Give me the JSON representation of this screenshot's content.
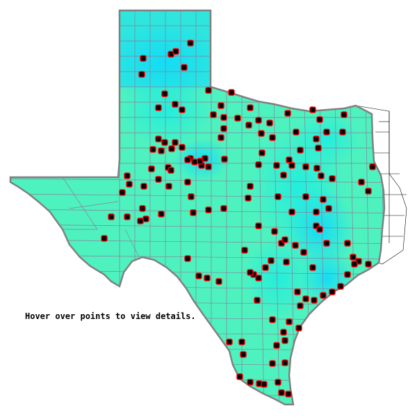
{
  "map": {
    "region": "Texas",
    "hint_text": "Hover over points to view details.",
    "colors": {
      "base_fill": "#4ef2bf",
      "mid_fill": "#22eedd",
      "high_fill": "#14dcf6",
      "county_lines": "#8c7c98",
      "outline": "#808080",
      "marker_fill": "#000000",
      "marker_outline": "#ff0000",
      "neighbor_fill": "#ffffff"
    },
    "marker_icon": "square-marker-icon"
  }
}
